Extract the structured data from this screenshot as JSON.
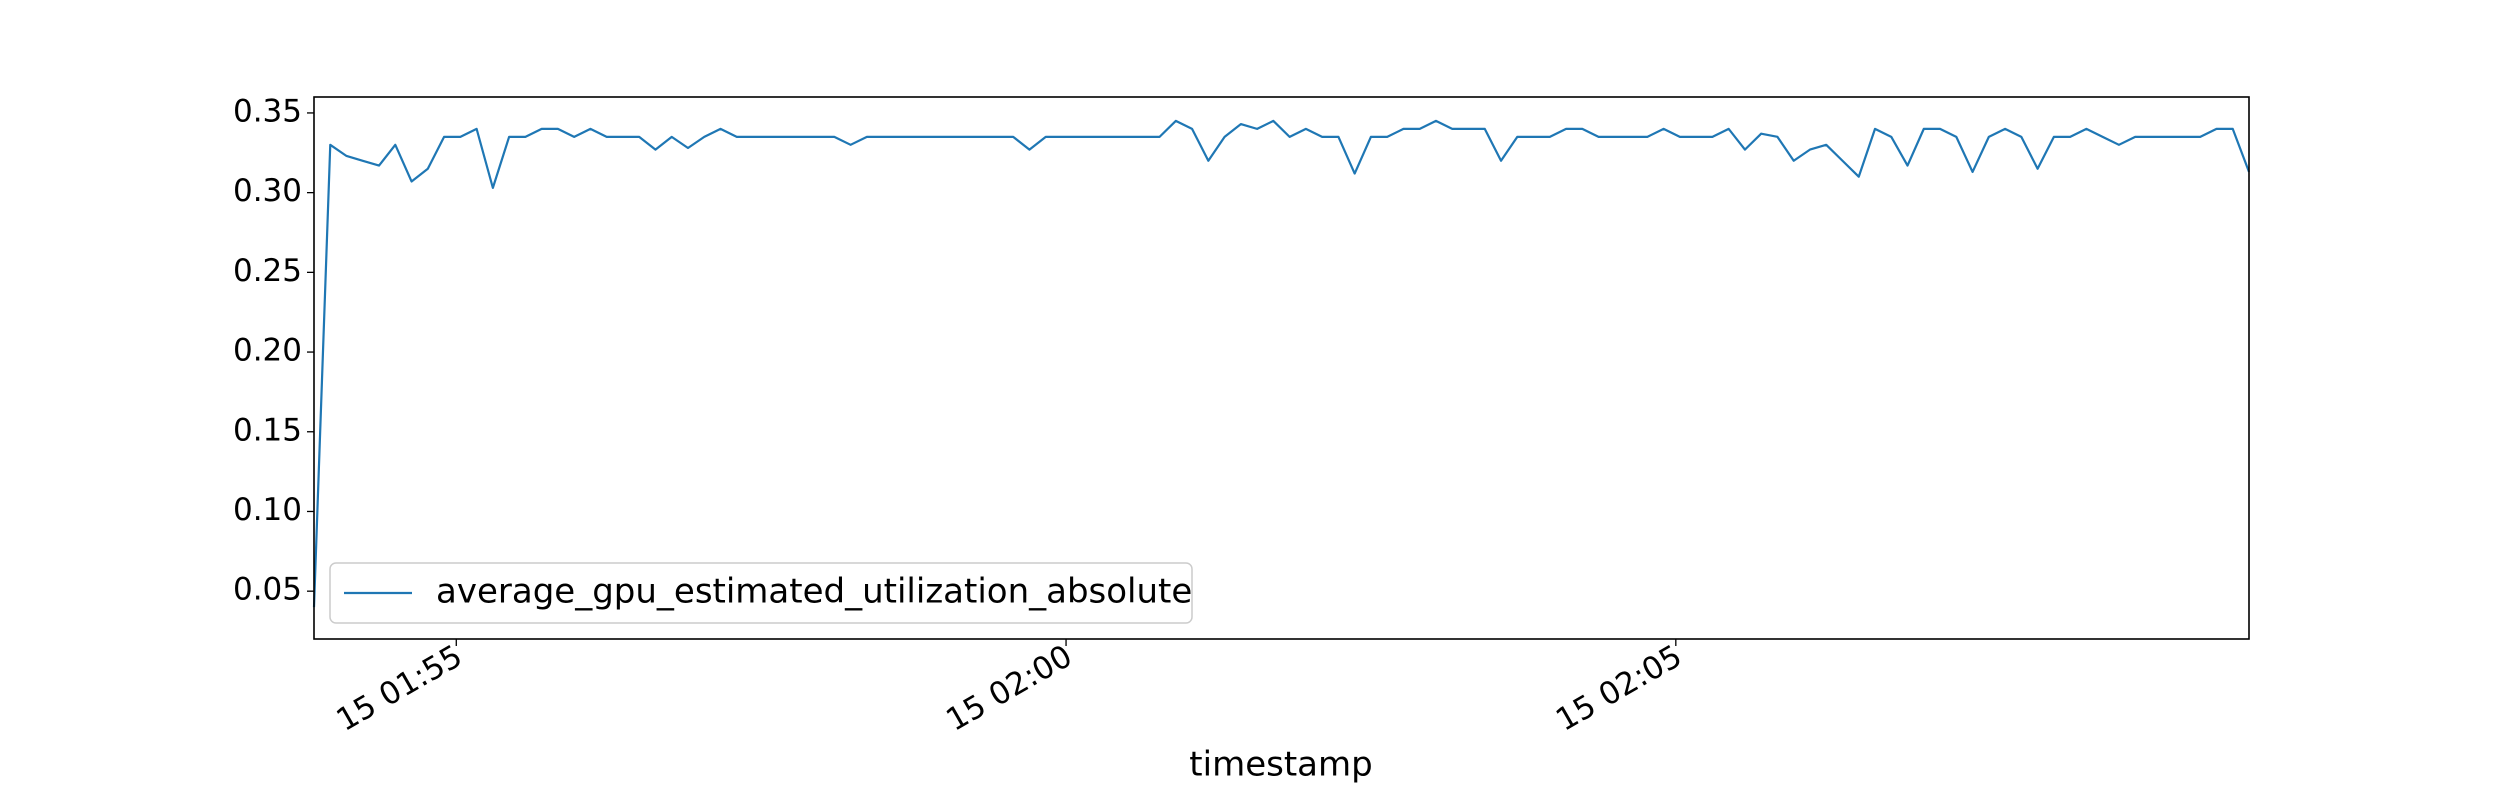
{
  "chart_data": {
    "type": "line",
    "xlabel": "timestamp",
    "x": [
      "15 01:53:50",
      "15 01:53:58",
      "15 01:54:06",
      "15 01:54:14",
      "15 01:54:22",
      "15 01:54:30",
      "15 01:54:38",
      "15 01:54:46",
      "15 01:54:54",
      "15 01:55:02",
      "15 01:55:10",
      "15 01:55:18",
      "15 01:55:26",
      "15 01:55:34",
      "15 01:55:42",
      "15 01:55:50",
      "15 01:55:58",
      "15 01:56:06",
      "15 01:56:14",
      "15 01:56:22",
      "15 01:56:30",
      "15 01:56:38",
      "15 01:56:46",
      "15 01:56:54",
      "15 01:57:02",
      "15 01:57:10",
      "15 01:57:18",
      "15 01:57:26",
      "15 01:57:34",
      "15 01:57:42",
      "15 01:57:50",
      "15 01:57:58",
      "15 01:58:06",
      "15 01:58:14",
      "15 01:58:22",
      "15 01:58:30",
      "15 01:58:38",
      "15 01:58:46",
      "15 01:58:54",
      "15 01:59:02",
      "15 01:59:10",
      "15 01:59:18",
      "15 01:59:26",
      "15 01:59:34",
      "15 01:59:42",
      "15 01:59:50",
      "15 01:59:58",
      "15 02:00:06",
      "15 02:00:14",
      "15 02:00:22",
      "15 02:00:30",
      "15 02:00:38",
      "15 02:00:46",
      "15 02:00:54",
      "15 02:01:02",
      "15 02:01:10",
      "15 02:01:18",
      "15 02:01:26",
      "15 02:01:34",
      "15 02:01:42",
      "15 02:01:50",
      "15 02:01:58",
      "15 02:02:06",
      "15 02:02:14",
      "15 02:02:22",
      "15 02:02:30",
      "15 02:02:38",
      "15 02:02:46",
      "15 02:02:54",
      "15 02:03:02",
      "15 02:03:10",
      "15 02:03:18",
      "15 02:03:26",
      "15 02:03:34",
      "15 02:03:42",
      "15 02:03:50",
      "15 02:03:58",
      "15 02:04:06",
      "15 02:04:14",
      "15 02:04:22",
      "15 02:04:30",
      "15 02:04:38",
      "15 02:04:46",
      "15 02:04:54",
      "15 02:05:02",
      "15 02:05:10",
      "15 02:05:18",
      "15 02:05:26",
      "15 02:05:34",
      "15 02:05:42",
      "15 02:05:50",
      "15 02:05:58",
      "15 02:06:06",
      "15 02:06:14",
      "15 02:06:22",
      "15 02:06:30",
      "15 02:06:38",
      "15 02:06:46",
      "15 02:06:54",
      "15 02:07:02",
      "15 02:07:10",
      "15 02:07:18",
      "15 02:07:26",
      "15 02:07:34",
      "15 02:07:42",
      "15 02:07:50",
      "15 02:07:58",
      "15 02:08:06",
      "15 02:08:14",
      "15 02:08:22",
      "15 02:08:30",
      "15 02:08:38",
      "15 02:08:46",
      "15 02:08:54",
      "15 02:09:02",
      "15 02:09:10",
      "15 02:09:18",
      "15 02:09:26",
      "15 02:09:34",
      "15 02:09:42"
    ],
    "series": [
      {
        "name": "average_gpu_estimated_utilization_absolute",
        "color": "#1f77b4",
        "values": [
          0.04,
          0.33,
          0.323,
          0.32,
          0.317,
          0.33,
          0.307,
          0.315,
          0.335,
          0.335,
          0.34,
          0.303,
          0.335,
          0.335,
          0.34,
          0.34,
          0.335,
          0.34,
          0.335,
          0.335,
          0.335,
          0.327,
          0.335,
          0.328,
          0.335,
          0.34,
          0.335,
          0.335,
          0.335,
          0.335,
          0.335,
          0.335,
          0.335,
          0.33,
          0.335,
          0.335,
          0.335,
          0.335,
          0.335,
          0.335,
          0.335,
          0.335,
          0.335,
          0.335,
          0.327,
          0.335,
          0.335,
          0.335,
          0.335,
          0.335,
          0.335,
          0.335,
          0.335,
          0.345,
          0.34,
          0.32,
          0.335,
          0.343,
          0.34,
          0.345,
          0.335,
          0.34,
          0.335,
          0.335,
          0.312,
          0.335,
          0.335,
          0.34,
          0.34,
          0.345,
          0.34,
          0.34,
          0.34,
          0.32,
          0.335,
          0.335,
          0.335,
          0.34,
          0.34,
          0.335,
          0.335,
          0.335,
          0.335,
          0.34,
          0.335,
          0.335,
          0.335,
          0.34,
          0.327,
          0.337,
          0.335,
          0.32,
          0.327,
          0.33,
          0.32,
          0.31,
          0.34,
          0.335,
          0.317,
          0.34,
          0.34,
          0.335,
          0.313,
          0.335,
          0.34,
          0.335,
          0.315,
          0.335,
          0.335,
          0.34,
          0.335,
          0.33,
          0.335,
          0.335,
          0.335,
          0.335,
          0.335,
          0.34,
          0.34,
          0.313
        ]
      }
    ],
    "xlim": [
      "15 01:53:50",
      "15 02:09:42"
    ],
    "xticks": [
      "15 01:55",
      "15 02:00",
      "15 02:05"
    ],
    "ylim": [
      0.02,
      0.36
    ],
    "yticks": [
      0.05,
      {
        "value": 0.1,
        "label": "0.10"
      },
      0.15,
      {
        "value": 0.2,
        "label": "0.20"
      },
      0.25,
      {
        "value": 0.3,
        "label": "0.30"
      },
      0.35
    ],
    "legend": "lower left",
    "grid": false
  }
}
